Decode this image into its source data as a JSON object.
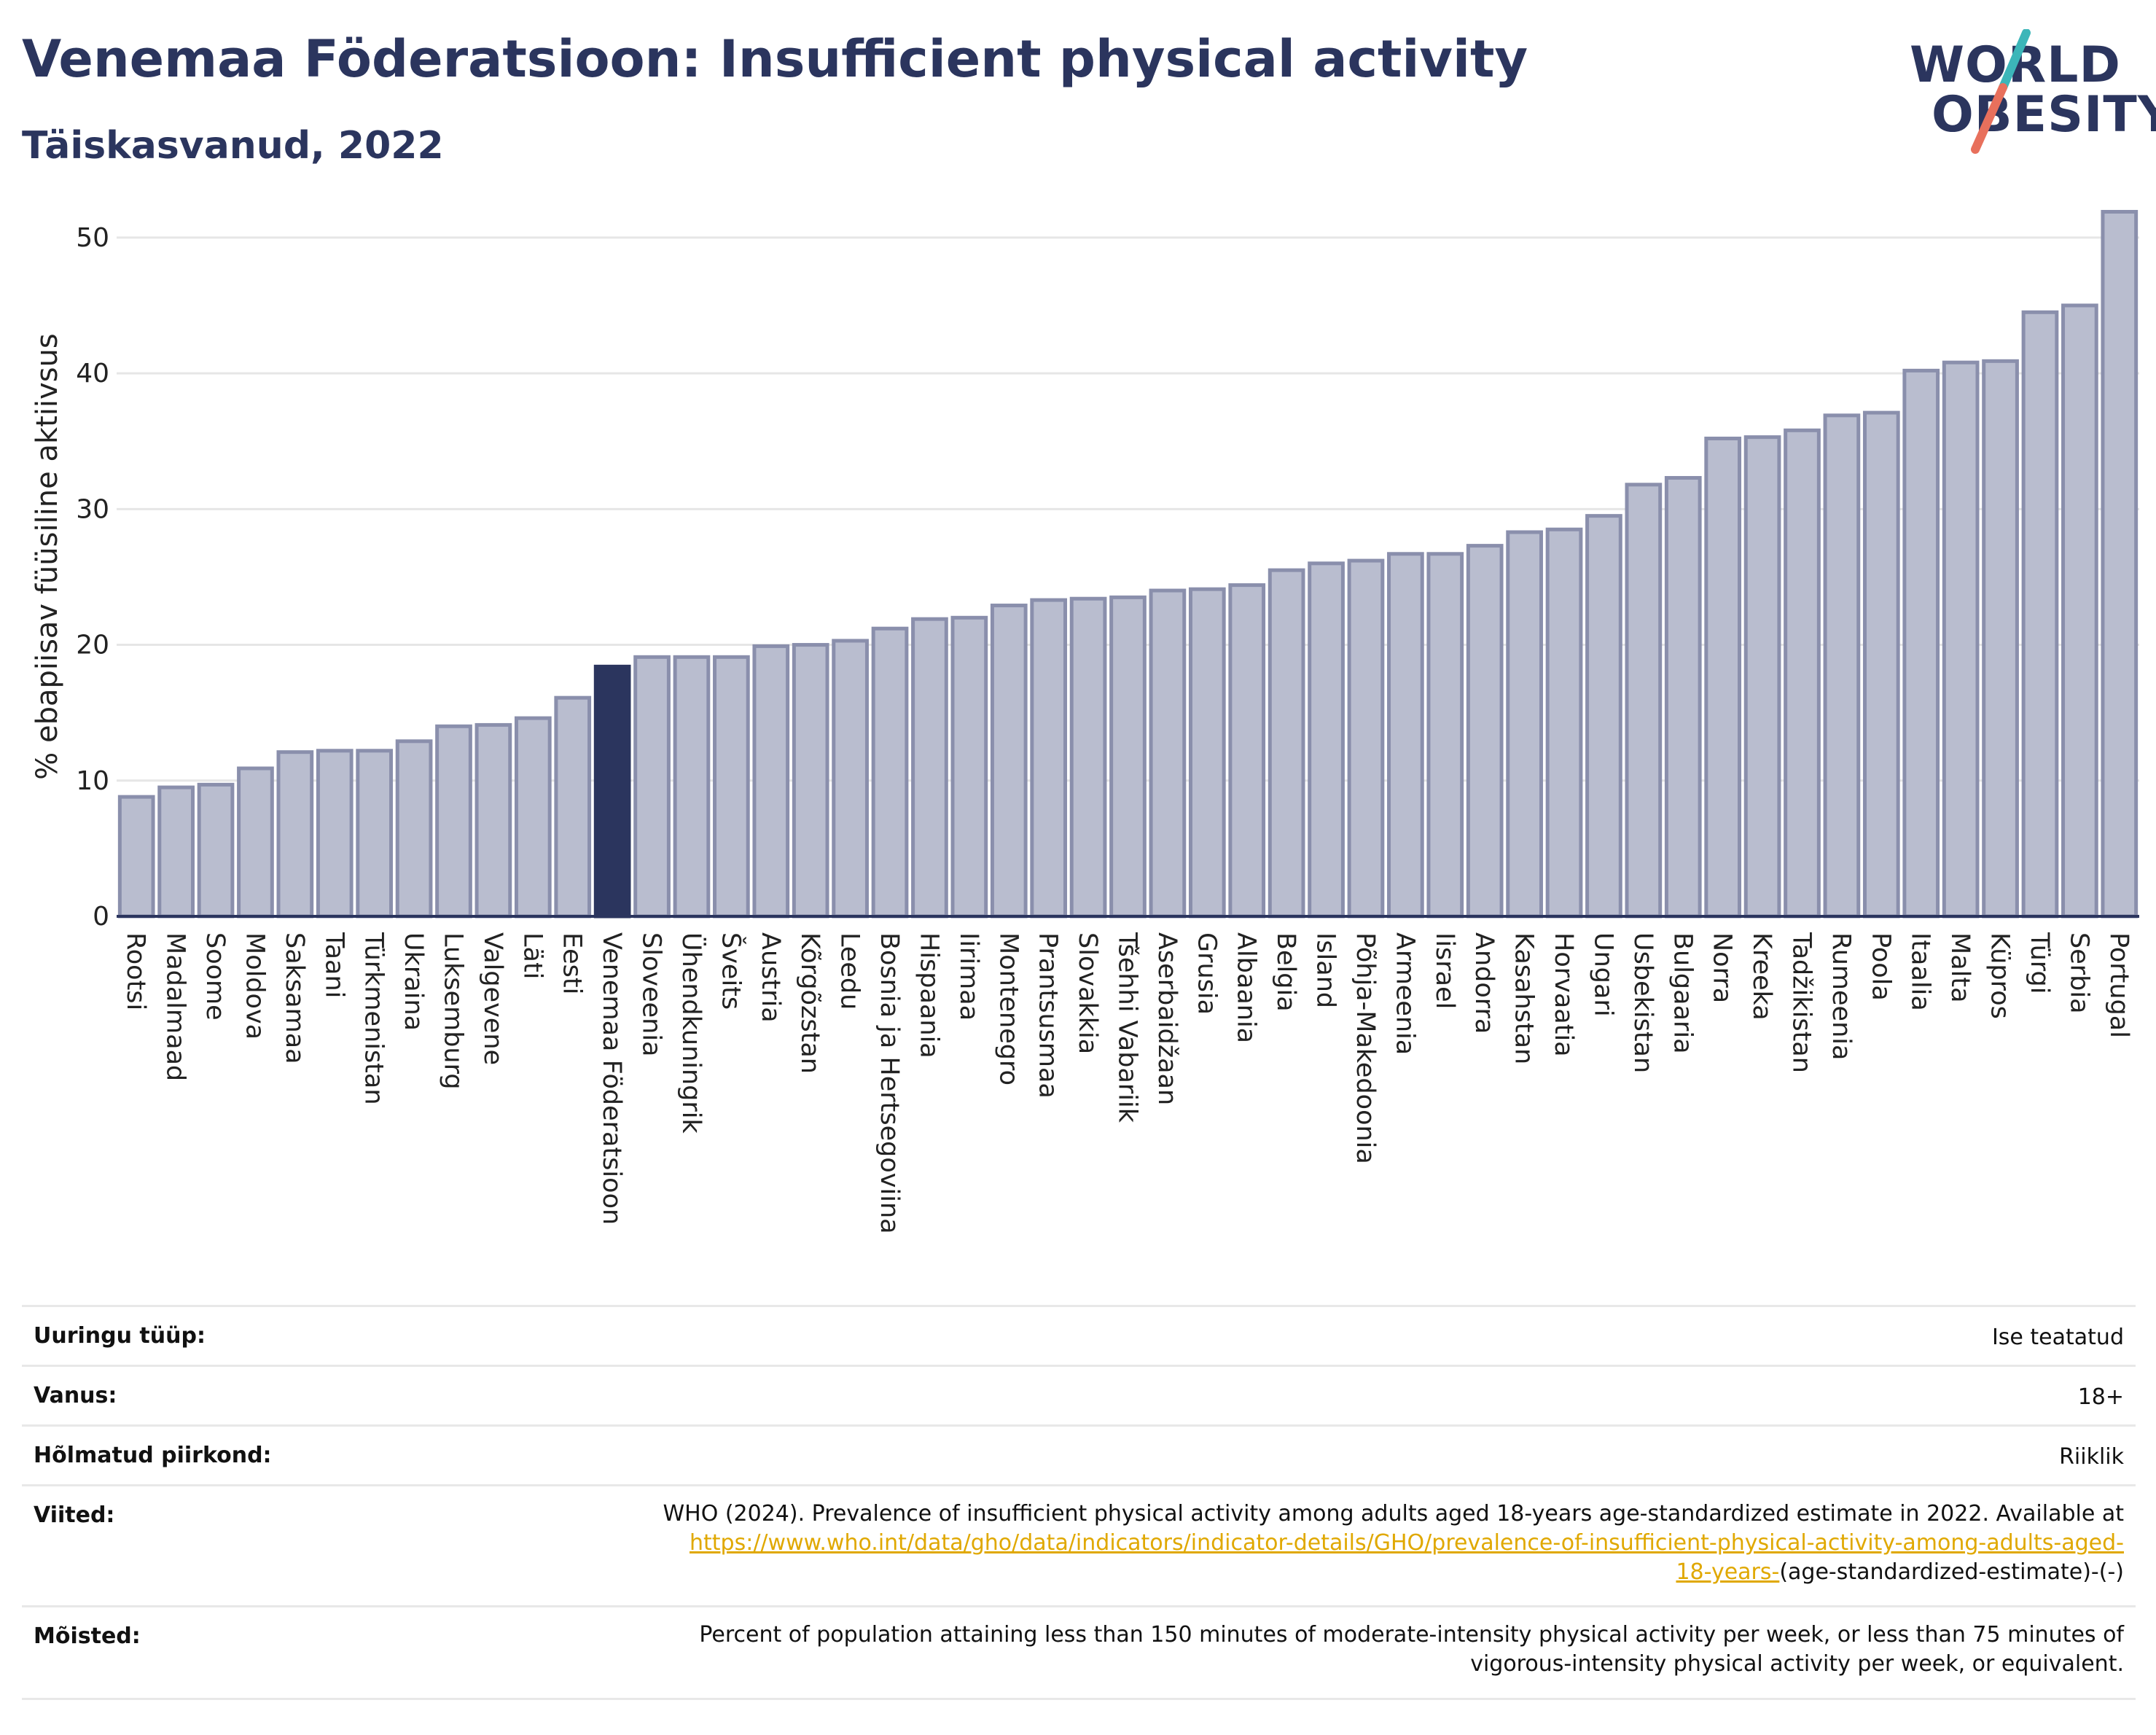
{
  "header": {
    "title": "Venemaa Föderatsioon: Insufficient physical activity",
    "subtitle": "Täiskasvanud, 2022"
  },
  "logo": {
    "line1": "WORLD",
    "line2": "OBESITY",
    "accent1": "#3cb6b9",
    "accent2": "#e8705c"
  },
  "colors": {
    "bar": "#b9bdcf",
    "bar_border": "#8a8fac",
    "highlight": "#2b355e",
    "grid": "#e6e6e6"
  },
  "chart_data": {
    "type": "bar",
    "ylabel": "% ebapiisav füüsiline aktiivsus",
    "ylim": [
      0,
      53
    ],
    "yticks": [
      0,
      10,
      20,
      30,
      40,
      50
    ],
    "grid": true,
    "highlight": "Venemaa Föderatsioon",
    "categories": [
      "Rootsi",
      "Madalmaad",
      "Soome",
      "Moldova",
      "Saksamaa",
      "Taani",
      "Türkmenistan",
      "Ukraina",
      "Luksemburg",
      "Valgevene",
      "Läti",
      "Eesti",
      "Venemaa Föderatsioon",
      "Sloveenia",
      "Ühendkuningrik",
      "Šveits",
      "Austria",
      "Kõrgõzstan",
      "Leedu",
      "Bosnia ja Hertsegoviina",
      "Hispaania",
      "Iirimaa",
      "Montenegro",
      "Prantsusmaa",
      "Slovakkia",
      "Tšehhi Vabariik",
      "Aserbaidžaan",
      "Grusia",
      "Albaania",
      "Belgia",
      "Island",
      "Põhja-Makedoonia",
      "Armeenia",
      "Iisrael",
      "Andorra",
      "Kasahstan",
      "Horvaatia",
      "Ungari",
      "Usbekistan",
      "Bulgaaria",
      "Norra",
      "Kreeka",
      "Tadžikistan",
      "Rumeenia",
      "Poola",
      "Itaalia",
      "Malta",
      "Küpros",
      "Türgi",
      "Serbia",
      "Portugal"
    ],
    "values": [
      8.8,
      9.5,
      9.7,
      10.9,
      12.1,
      12.2,
      12.2,
      12.9,
      14.0,
      14.1,
      14.6,
      16.1,
      18.4,
      19.1,
      19.1,
      19.1,
      19.9,
      20.0,
      20.3,
      21.2,
      21.9,
      22.0,
      22.9,
      23.3,
      23.4,
      23.5,
      24.0,
      24.1,
      24.4,
      25.5,
      26.0,
      26.2,
      26.7,
      26.7,
      27.3,
      28.3,
      28.5,
      29.5,
      31.8,
      32.3,
      35.2,
      35.3,
      35.8,
      36.9,
      37.1,
      40.2,
      40.8,
      40.9,
      44.5,
      45.0,
      51.9
    ]
  },
  "meta": {
    "survey_label": "Uuringu tüüp:",
    "survey_value": "Ise teatatud",
    "age_label": "Vanus:",
    "age_value": "18+",
    "region_label": "Hõlmatud piirkond:",
    "region_value": "Riiklik",
    "ref_label": "Viited:",
    "ref_text": "WHO (2024). Prevalence of insufficient physical activity among adults aged 18-years age-standardized estimate in 2022. Available at",
    "ref_link_1": "https://www.who.int/data/gho/data/indicators/indicator-details/GHO/prevalence-of-insufficient-physical-activity-among-adults-aged-",
    "ref_link_2": "18-years-",
    "ref_tail": "(age-standardized-estimate)-(-)",
    "def_label": "Mõisted:",
    "def_line1": "Percent of population attaining less than 150 minutes of moderate-intensity physical activity per week, or less than 75 minutes of",
    "def_line2": "vigorous-intensity physical activity per week, or equivalent."
  }
}
